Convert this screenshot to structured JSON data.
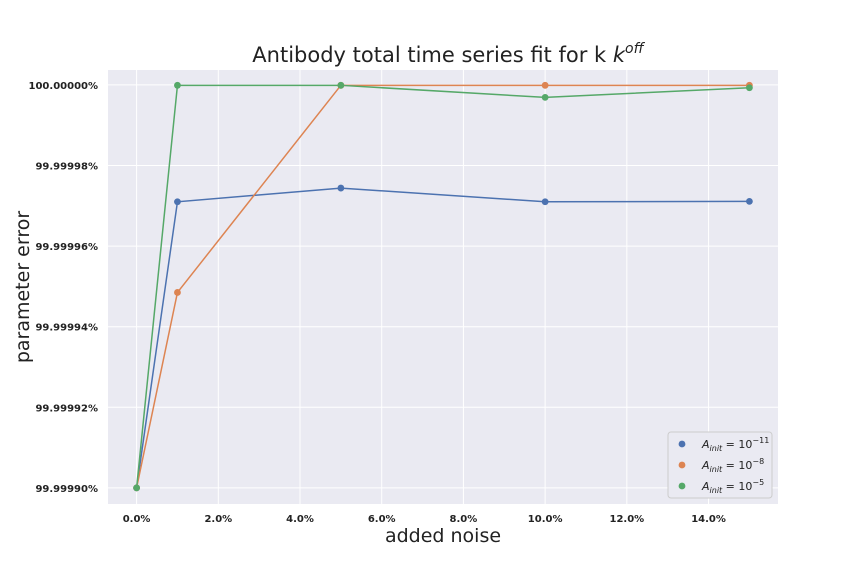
{
  "chart_data": {
    "type": "line",
    "title": "Antibody total time series fit for k",
    "title_superscript": "off",
    "xlabel": "added noise",
    "ylabel": "parameter error",
    "x_ticks": [
      "0.0%",
      "2.0%",
      "4.0%",
      "6.0%",
      "8.0%",
      "10.0%",
      "12.0%",
      "14.0%"
    ],
    "y_ticks": [
      "99.99990%",
      "99.99992%",
      "99.99994%",
      "99.99996%",
      "99.99998%",
      "100.00000%"
    ],
    "xlim": [
      -0.7,
      15.7
    ],
    "ylim": [
      99.999896,
      100.0000037
    ],
    "grid": true,
    "legend_position": "bottom-right",
    "x": [
      0,
      1,
      5,
      10,
      15
    ],
    "series": [
      {
        "label_base": "A",
        "label_sub": "init",
        "label_eq": " = 10",
        "label_exp": "−11",
        "color": "#4c72b0",
        "values": [
          99.9999,
          99.999971,
          99.9999744,
          99.999971,
          99.9999711
        ]
      },
      {
        "label_base": "A",
        "label_sub": "init",
        "label_eq": " = 10",
        "label_exp": "−8",
        "color": "#dd8452",
        "values": [
          99.9999,
          99.9999485,
          99.9999999,
          99.9999999,
          99.9999999
        ]
      },
      {
        "label_base": "A",
        "label_sub": "init",
        "label_eq": " = 10",
        "label_exp": "−5",
        "color": "#55a868",
        "values": [
          99.9999,
          99.9999999,
          99.9999999,
          99.9999969,
          99.9999993
        ]
      }
    ]
  }
}
